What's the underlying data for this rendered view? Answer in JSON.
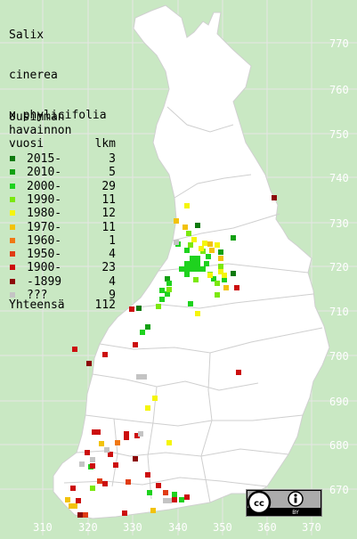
{
  "species_name": [
    "Salix",
    "cinerea",
    "x phylicifolia"
  ],
  "legend": {
    "title_lines": [
      "Uusimman",
      "havainnon"
    ],
    "column_year": "vuosi",
    "column_count": "lkm",
    "rows": [
      {
        "label": "2015-",
        "count": "3",
        "color": "#0e7a0e"
      },
      {
        "label": "2010-",
        "count": "5",
        "color": "#12a012"
      },
      {
        "label": "2000-",
        "count": "29",
        "color": "#1ed21e"
      },
      {
        "label": "1990-",
        "count": "11",
        "color": "#7be80e"
      },
      {
        "label": "1980-",
        "count": "12",
        "color": "#f5f50a"
      },
      {
        "label": "1970-",
        "count": "11",
        "color": "#f2c20c"
      },
      {
        "label": "1960-",
        "count": "1",
        "color": "#f07814"
      },
      {
        "label": "1950-",
        "count": "4",
        "color": "#e03c14"
      },
      {
        "label": "1900-",
        "count": "23",
        "color": "#cc0e0e"
      },
      {
        "label": "-1899",
        "count": "4",
        "color": "#8c0808"
      },
      {
        "label": "???",
        "count": "9",
        "color": "#c4c4c4"
      }
    ],
    "total_label": "Yhteensä",
    "total_count": "112"
  },
  "grid": {
    "y_ticks": [
      "770",
      "760",
      "750",
      "740",
      "730",
      "720",
      "710",
      "700",
      "690",
      "680",
      "670"
    ],
    "x_ticks": [
      "310",
      "320",
      "330",
      "340",
      "350",
      "360",
      "370"
    ]
  },
  "colors": {
    "sea": "#c9e8c3",
    "land": "#ffffff",
    "grid": "#e6e6e6",
    "border": "#c8c8c8",
    "tick_text": "#ffffff"
  },
  "license_badge": {
    "icons": [
      "cc-icon",
      "by-icon"
    ],
    "text": "BY"
  }
}
